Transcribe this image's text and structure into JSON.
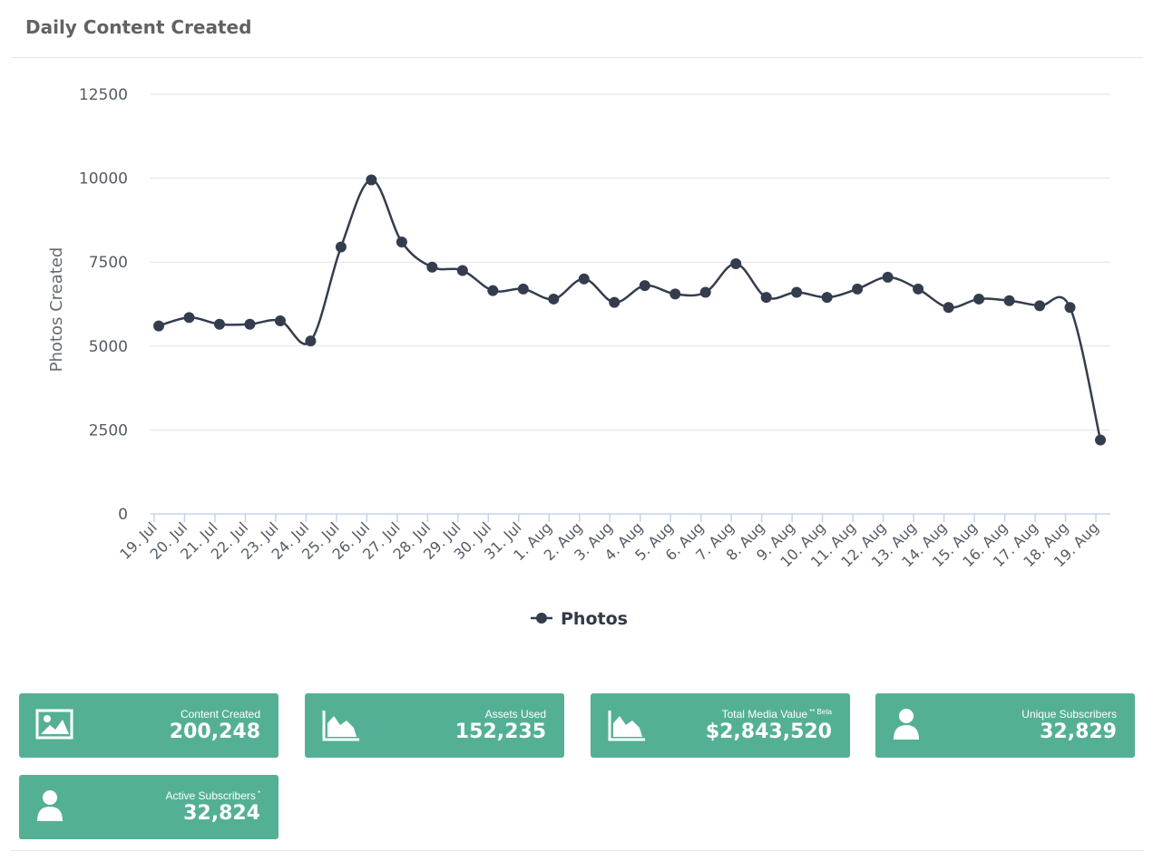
{
  "panel": {
    "title": "Daily Content Created"
  },
  "chart_data": {
    "type": "line",
    "title": "",
    "xlabel": "",
    "ylabel": "Photos Created",
    "ylim": [
      0,
      12500
    ],
    "yticks": [
      "12500",
      "10000",
      "7500",
      "5000",
      "2500",
      "0"
    ],
    "grid": true,
    "legend_position": "bottom-center",
    "categories": [
      "19. Jul",
      "20. Jul",
      "21. Jul",
      "22. Jul",
      "23. Jul",
      "24. Jul",
      "25. Jul",
      "26. Jul",
      "27. Jul",
      "28. Jul",
      "29. Jul",
      "30. Jul",
      "31. Jul",
      "1. Aug",
      "2. Aug",
      "3. Aug",
      "4. Aug",
      "5. Aug",
      "6. Aug",
      "7. Aug",
      "8. Aug",
      "9. Aug",
      "10. Aug",
      "11. Aug",
      "12. Aug",
      "13. Aug",
      "14. Aug",
      "15. Aug",
      "16. Aug",
      "17. Aug",
      "18. Aug",
      "19. Aug"
    ],
    "series": [
      {
        "name": "Photos",
        "color": "#343d4e",
        "values": [
          5600,
          5850,
          5650,
          5650,
          5750,
          5150,
          7950,
          9950,
          8100,
          7350,
          7250,
          6650,
          6700,
          6400,
          7000,
          6300,
          6800,
          6550,
          6600,
          7450,
          6450,
          6600,
          6450,
          6700,
          7050,
          6700,
          6150,
          6400,
          6350,
          6200,
          6150,
          2200
        ]
      }
    ]
  },
  "cards": [
    {
      "label": "Content Created",
      "sup": "",
      "value": "200,248",
      "icon": "image-icon"
    },
    {
      "label": "Assets Used",
      "sup": "",
      "value": "152,235",
      "icon": "area-chart-icon"
    },
    {
      "label": "Total Media Value",
      "sup": "** Beta",
      "value": "$2,843,520",
      "icon": "area-chart-icon"
    },
    {
      "label": "Unique Subscribers",
      "sup": "",
      "value": "32,829",
      "icon": "user-icon"
    },
    {
      "label": "Active Subscribers",
      "sup": "*",
      "value": "32,824",
      "icon": "user-icon"
    }
  ],
  "colors": {
    "card_background": "#54b094",
    "series_line": "#343d4e",
    "grid": "#dde2ea"
  }
}
